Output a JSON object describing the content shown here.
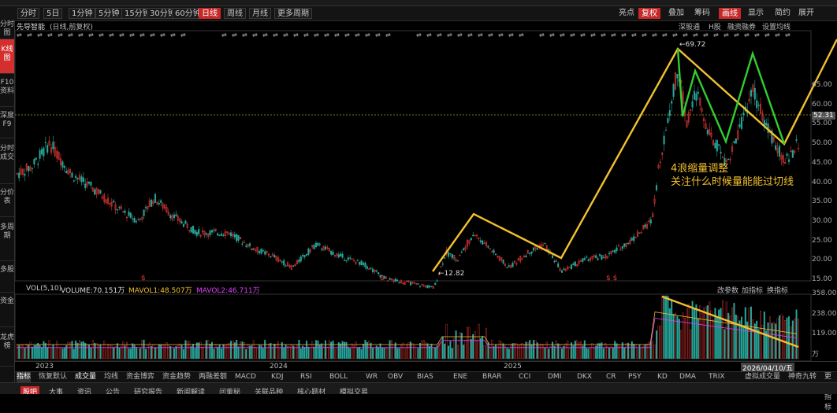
{
  "colors": {
    "accent": "#c62828",
    "up": "#e53935",
    "down": "#26a69a",
    "annotation": "#f2c12e",
    "wave_green": "#32cd32",
    "mavol1": "#f2c12e",
    "mavol2": "#e040fb"
  },
  "toolbar": {
    "items": [
      "分时",
      "5日",
      "1分钟",
      "5分钟",
      "15分钟",
      "30分钟",
      "60分钟",
      "日线",
      "周线",
      "月线",
      "更多周期"
    ],
    "right_items": [
      "亮点",
      "复权",
      "叠加",
      "筹码",
      "画线",
      "显示",
      "简约",
      "展开"
    ]
  },
  "sidebar": {
    "items": [
      "分时图",
      "K线图",
      "F10资料",
      "深度F9",
      "分时成交",
      "分价表",
      "多周期",
      "多股",
      "资金",
      "龙虎榜"
    ]
  },
  "infobar": {
    "stock": "先导智能",
    "mode": "(日线,前复权)",
    "right_items": [
      "深股通",
      "H股",
      "融资融券",
      "设置均线"
    ]
  },
  "price_axis": {
    "ticks": [
      "65.00",
      "60.00",
      "55.00",
      "50.00",
      "45.00",
      "40.00",
      "35.00",
      "30.00",
      "25.00",
      "20.00",
      "15.00"
    ],
    "current": "52.31"
  },
  "price_marks": {
    "high": "←69.72",
    "low": "←12.82"
  },
  "annotation": {
    "line1": "4浪缩量调整",
    "line2": "关注什么时候量能能过切线"
  },
  "volume": {
    "title": "VOL(5,10)",
    "volume": "VOLUME:70.151万",
    "mavol1": "MAVOL1:48.507万",
    "mavol2": "MAVOL2:46.711万",
    "right_items": [
      "改参数",
      "加指标",
      "换指标"
    ],
    "ticks": [
      "358.00",
      "238.00",
      "119.00",
      "万"
    ]
  },
  "xaxis": {
    "labels": [
      "2023",
      "2024",
      "2025"
    ],
    "date": "2026/04/10/五"
  },
  "indicator_tabs": [
    "指标",
    "恢复默认",
    "成交量",
    "均线",
    "资金博弈",
    "资金趋势",
    "两融差额",
    "MACD",
    "KDJ",
    "RSI",
    "BOLL",
    "WR",
    "OBV",
    "BIAS",
    "ENE",
    "BRAR",
    "CCI",
    "DMI",
    "DKX",
    "CR",
    "PSY",
    "KD",
    "DMA",
    "TRIX",
    "虚拟成交量",
    "神奇九转",
    "更多指标",
    "模板"
  ],
  "footer": [
    "股吧",
    "大事",
    "资讯",
    "公告",
    "研究报告",
    "新闻解读",
    "问董秘",
    "关联品种",
    "核心题材",
    "模拟交易"
  ]
}
